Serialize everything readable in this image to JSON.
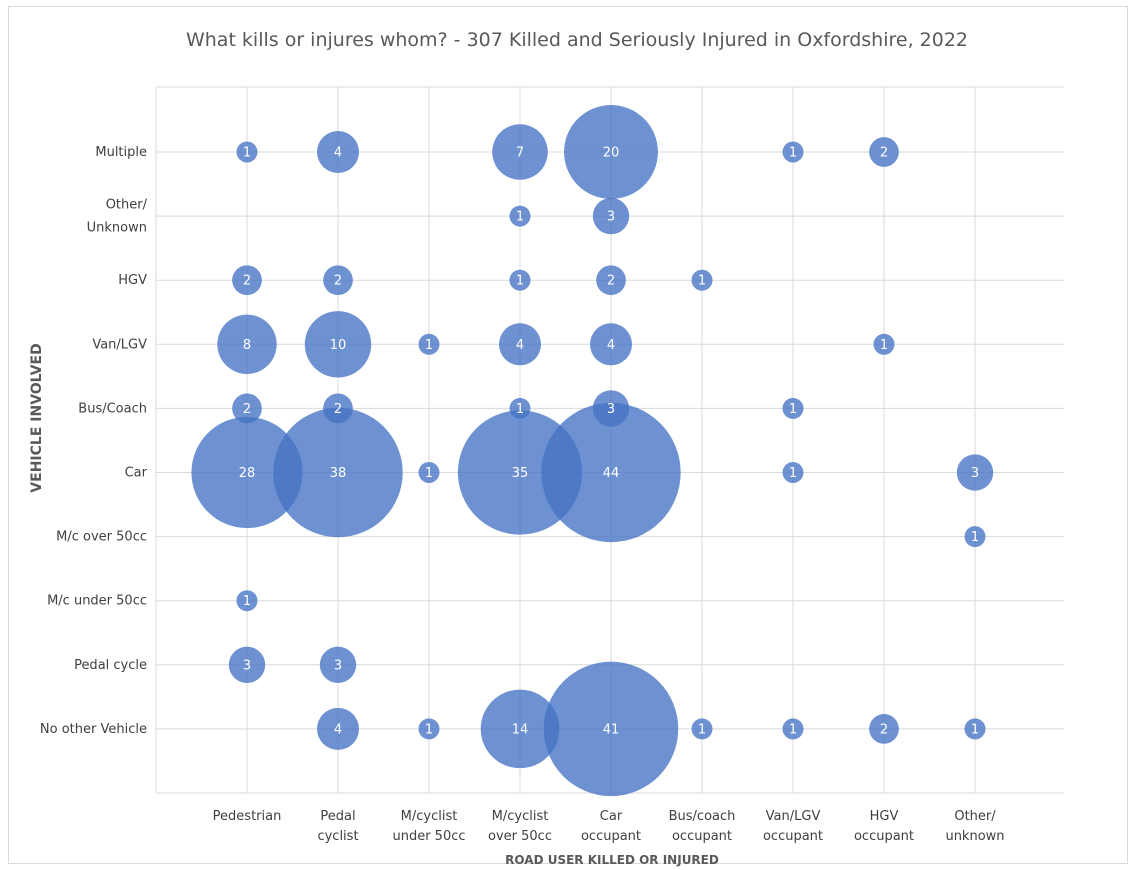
{
  "chart_data": {
    "type": "bubble",
    "title": "What kills or injures whom? - 307 Killed and Seriously Injured in Oxfordshire, 2022",
    "xlabel": "ROAD USER KILLED OR INJURED",
    "ylabel": "VEHICLE INVOLVED",
    "x_categories": [
      [
        "Pedestrian"
      ],
      [
        "Pedal",
        "cyclist"
      ],
      [
        "M/cyclist",
        "under 50cc"
      ],
      [
        "M/cyclist",
        "over 50cc"
      ],
      [
        "Car",
        "occupant"
      ],
      [
        "Bus/coach",
        "occupant"
      ],
      [
        "Van/LGV",
        "occupant"
      ],
      [
        "HGV",
        "occupant"
      ],
      [
        "Other/",
        "unknown"
      ]
    ],
    "y_categories": [
      [
        "Multiple"
      ],
      [
        "Other/",
        "Unknown"
      ],
      [
        "HGV"
      ],
      [
        "Van/LGV"
      ],
      [
        "Bus/Coach"
      ],
      [
        "Car"
      ],
      [
        "M/c over 50cc"
      ],
      [
        "M/c under 50cc"
      ],
      [
        "Pedal cycle"
      ],
      [
        "No other Vehicle"
      ]
    ],
    "bubble_color": "#4472c4",
    "gridlines": true,
    "points": [
      {
        "row": 0,
        "col": 0,
        "value": 1
      },
      {
        "row": 0,
        "col": 1,
        "value": 4
      },
      {
        "row": 0,
        "col": 3,
        "value": 7
      },
      {
        "row": 0,
        "col": 4,
        "value": 20
      },
      {
        "row": 0,
        "col": 6,
        "value": 1
      },
      {
        "row": 0,
        "col": 7,
        "value": 2
      },
      {
        "row": 1,
        "col": 3,
        "value": 1
      },
      {
        "row": 1,
        "col": 4,
        "value": 3
      },
      {
        "row": 2,
        "col": 0,
        "value": 2
      },
      {
        "row": 2,
        "col": 1,
        "value": 2
      },
      {
        "row": 2,
        "col": 3,
        "value": 1
      },
      {
        "row": 2,
        "col": 4,
        "value": 2
      },
      {
        "row": 2,
        "col": 5,
        "value": 1
      },
      {
        "row": 3,
        "col": 0,
        "value": 8
      },
      {
        "row": 3,
        "col": 1,
        "value": 10
      },
      {
        "row": 3,
        "col": 2,
        "value": 1
      },
      {
        "row": 3,
        "col": 3,
        "value": 4
      },
      {
        "row": 3,
        "col": 4,
        "value": 4
      },
      {
        "row": 3,
        "col": 7,
        "value": 1
      },
      {
        "row": 4,
        "col": 0,
        "value": 2
      },
      {
        "row": 4,
        "col": 1,
        "value": 2
      },
      {
        "row": 4,
        "col": 3,
        "value": 1
      },
      {
        "row": 4,
        "col": 4,
        "value": 3
      },
      {
        "row": 4,
        "col": 6,
        "value": 1
      },
      {
        "row": 5,
        "col": 0,
        "value": 28
      },
      {
        "row": 5,
        "col": 1,
        "value": 38
      },
      {
        "row": 5,
        "col": 2,
        "value": 1
      },
      {
        "row": 5,
        "col": 3,
        "value": 35
      },
      {
        "row": 5,
        "col": 4,
        "value": 44
      },
      {
        "row": 5,
        "col": 6,
        "value": 1
      },
      {
        "row": 5,
        "col": 8,
        "value": 3
      },
      {
        "row": 6,
        "col": 8,
        "value": 1
      },
      {
        "row": 7,
        "col": 0,
        "value": 1
      },
      {
        "row": 8,
        "col": 0,
        "value": 3
      },
      {
        "row": 8,
        "col": 1,
        "value": 3
      },
      {
        "row": 9,
        "col": 1,
        "value": 4
      },
      {
        "row": 9,
        "col": 2,
        "value": 1
      },
      {
        "row": 9,
        "col": 3,
        "value": 14
      },
      {
        "row": 9,
        "col": 4,
        "value": 41
      },
      {
        "row": 9,
        "col": 5,
        "value": 1
      },
      {
        "row": 9,
        "col": 6,
        "value": 1
      },
      {
        "row": 9,
        "col": 7,
        "value": 2
      },
      {
        "row": 9,
        "col": 8,
        "value": 1
      }
    ]
  }
}
